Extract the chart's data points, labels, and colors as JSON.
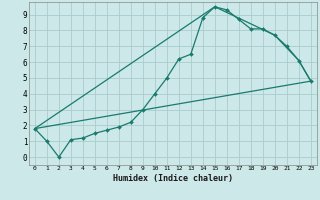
{
  "title": "",
  "xlabel": "Humidex (Indice chaleur)",
  "bg_color": "#cce8e8",
  "grid_color": "#aacccc",
  "line_color": "#1a7a6e",
  "xlim": [
    -0.5,
    23.5
  ],
  "ylim": [
    -0.5,
    9.8
  ],
  "yticks": [
    0,
    1,
    2,
    3,
    4,
    5,
    6,
    7,
    8,
    9
  ],
  "xticks": [
    0,
    1,
    2,
    3,
    4,
    5,
    6,
    7,
    8,
    9,
    10,
    11,
    12,
    13,
    14,
    15,
    16,
    17,
    18,
    19,
    20,
    21,
    22,
    23
  ],
  "curve1_x": [
    0,
    1,
    2,
    3,
    4,
    5,
    6,
    7,
    8,
    9,
    10,
    11,
    12,
    13,
    14,
    15,
    16,
    17,
    18,
    19,
    20,
    21,
    22,
    23
  ],
  "curve1_y": [
    1.8,
    1.0,
    0.0,
    1.1,
    1.2,
    1.5,
    1.7,
    1.9,
    2.2,
    3.0,
    4.0,
    5.0,
    6.2,
    6.5,
    8.8,
    9.5,
    9.3,
    8.7,
    8.1,
    8.1,
    7.7,
    7.0,
    6.1,
    4.8
  ],
  "curve2_x": [
    0,
    15,
    20,
    22,
    23
  ],
  "curve2_y": [
    1.8,
    9.5,
    7.7,
    6.1,
    4.8
  ],
  "curve3_x": [
    0,
    23
  ],
  "curve3_y": [
    1.8,
    4.8
  ],
  "marker_size": 2.0,
  "line_width": 0.9
}
